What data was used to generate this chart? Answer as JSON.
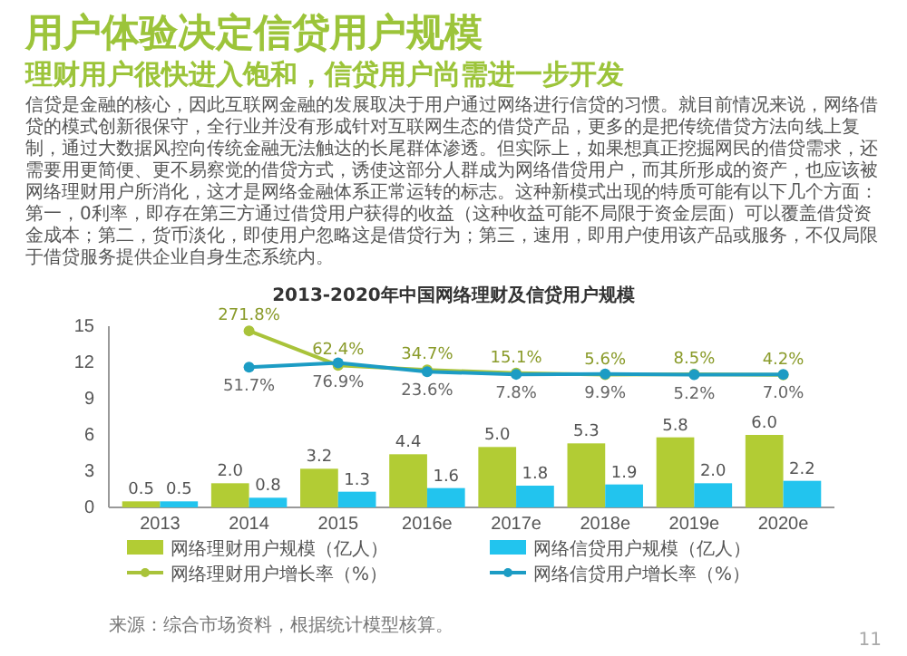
{
  "chart_data": {
    "type": "bar",
    "title": "2013-2020年中国网络理财及信贷用户规模",
    "categories": [
      "2013",
      "2014",
      "2015",
      "2016e",
      "2017e",
      "2018e",
      "2019e",
      "2020e"
    ],
    "ylim": [
      0,
      15
    ],
    "yticks": [
      0,
      3,
      6,
      9,
      12,
      15
    ],
    "y2lim": [
      -800,
      300
    ],
    "legend": "bottom",
    "marker": "circle",
    "grid": false,
    "series": [
      {
        "name": "网络理财用户规模（亿人）",
        "color": "#b2cc34",
        "values": [
          0.5,
          2.0,
          3.2,
          4.4,
          5.0,
          5.3,
          5.8,
          6.0
        ],
        "value_labels": [
          "0.5",
          "2.0",
          "3.2",
          "4.4",
          "5.0",
          "5.3",
          "5.8",
          "6.0"
        ]
      },
      {
        "name": "网络信贷用户规模（亿人）",
        "color": "#22c4ee",
        "values": [
          0.5,
          0.8,
          1.3,
          1.6,
          1.8,
          1.9,
          2.0,
          2.2
        ],
        "value_labels": [
          "0.5",
          "0.8",
          "1.3",
          "1.6",
          "1.8",
          "1.9",
          "2.0",
          "2.2"
        ]
      },
      {
        "name": "网络理财用户增长率（%）",
        "type": "line",
        "axis": "y2",
        "color": "#a9c33a",
        "values": [
          null,
          271.8,
          62.4,
          34.7,
          15.1,
          5.6,
          8.5,
          4.2
        ],
        "value_labels": [
          null,
          "271.8%",
          "62.4%",
          "34.7%",
          "15.1%",
          "5.6%",
          "8.5%",
          "4.2%"
        ]
      },
      {
        "name": "网络信贷用户增长率（%）",
        "type": "line",
        "axis": "y2",
        "color": "#1c9cc4",
        "values": [
          null,
          51.7,
          76.9,
          23.6,
          7.8,
          9.9,
          5.2,
          7.0
        ],
        "value_labels": [
          null,
          "51.7%",
          "76.9%",
          "23.6%",
          "7.8%",
          "9.9%",
          "5.2%",
          "7.0%"
        ]
      }
    ],
    "annotations": [
      "用户体验决定信贷用户规模",
      "理财用户很快进入饱和，信贷用户尚需进一步开发",
      "信贷是金融的核心，因此互联网金融的发展取决于用户通过网络进行信贷的习惯。就目前情况来说，网络借贷的模式创新很保守，全行业并没有形成针对互联网生态的借贷产品，更多的是把传统借贷方法向线上复制，通过大数据风控向传统金融无法触达的长尾群体渗透。但实际上，如果想真正挖掘网民的借贷需求，还需要用更简便、更不易察觉的借贷方式，诱使这部分人群成为网络借贷用户，而其所形成的资产，也应该被网络理财用户所消化，这才是网络金融体系正常运转的标志。这种新模式出现的特质可能有以下几个方面：第一，0利率，即存在第三方通过借贷用户获得的收益（这种收益可能不局限于资金层面）可以覆盖借贷资金成本；第二，货币淡化，即使用户忽略这是借贷行为；第三，速用，即用户使用该产品或服务，不仅局限于借贷服务提供企业自身生态系统内。",
      "来源：综合市场资料，根据统计模型核算。",
      "11"
    ]
  }
}
